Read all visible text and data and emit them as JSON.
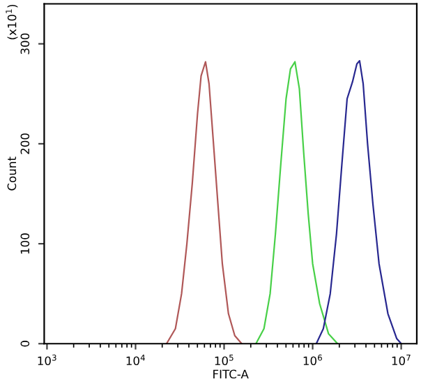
{
  "chart_data": {
    "type": "line",
    "xlabel": "FITC-A",
    "ylabel": "Count",
    "log": "x",
    "grid": false,
    "legend": false,
    "marker": "none",
    "line_style": "solid",
    "annotations": [
      "(x10$^{1}$)"
    ],
    "xlim": [
      930,
      15000000
    ],
    "ylim": [
      0,
      340
    ],
    "xticks": [
      {
        "value": 1000,
        "label": "10$^{3}$"
      },
      {
        "value": 10000,
        "label": "10$^{4}$"
      },
      {
        "value": 100000,
        "label": "10$^{5}$"
      },
      {
        "value": 1000000,
        "label": "10$^{6}$"
      },
      {
        "value": 10000000,
        "label": "10$^{7}$"
      }
    ],
    "yticks": [
      0,
      100,
      200,
      300
    ],
    "series": [
      {
        "color": "#b05858",
        "x": [
          22400,
          28200,
          33100,
          38000,
          43700,
          50100,
          55000,
          61700,
          67600,
          75900,
          85100,
          95500,
          112000,
          132000,
          158000
        ],
        "values": [
          0,
          15,
          50,
          100,
          160,
          230,
          268,
          282,
          260,
          200,
          140,
          80,
          30,
          8,
          0
        ]
      },
      {
        "color": "#48d048",
        "x": [
          229000,
          282000,
          331000,
          380000,
          437000,
          501000,
          562000,
          631000,
          708000,
          794000,
          891000,
          1000000,
          1200000,
          1510000,
          1910000
        ],
        "values": [
          0,
          15,
          50,
          110,
          180,
          245,
          275,
          282,
          255,
          190,
          130,
          80,
          40,
          10,
          0
        ]
      },
      {
        "color": "#282890",
        "x": [
          1100000,
          1320000,
          1580000,
          1860000,
          2140000,
          2450000,
          2820000,
          3160000,
          3390000,
          3720000,
          4170000,
          4790000,
          5620000,
          7080000,
          8910000,
          10000000
        ],
        "values": [
          0,
          15,
          50,
          110,
          180,
          245,
          262,
          280,
          283,
          260,
          200,
          140,
          80,
          30,
          5,
          0
        ]
      }
    ]
  }
}
